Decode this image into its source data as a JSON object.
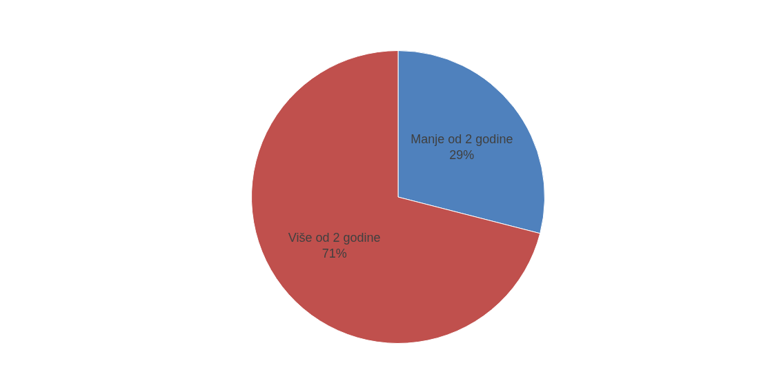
{
  "chart_data": {
    "type": "pie",
    "categories": [
      "Manje od 2 godine",
      "Više od 2 godine"
    ],
    "values": [
      29,
      71
    ],
    "colors": [
      "#4f81bd",
      "#c0504d"
    ],
    "value_labels": [
      "29%",
      "71%"
    ],
    "legend": false
  }
}
